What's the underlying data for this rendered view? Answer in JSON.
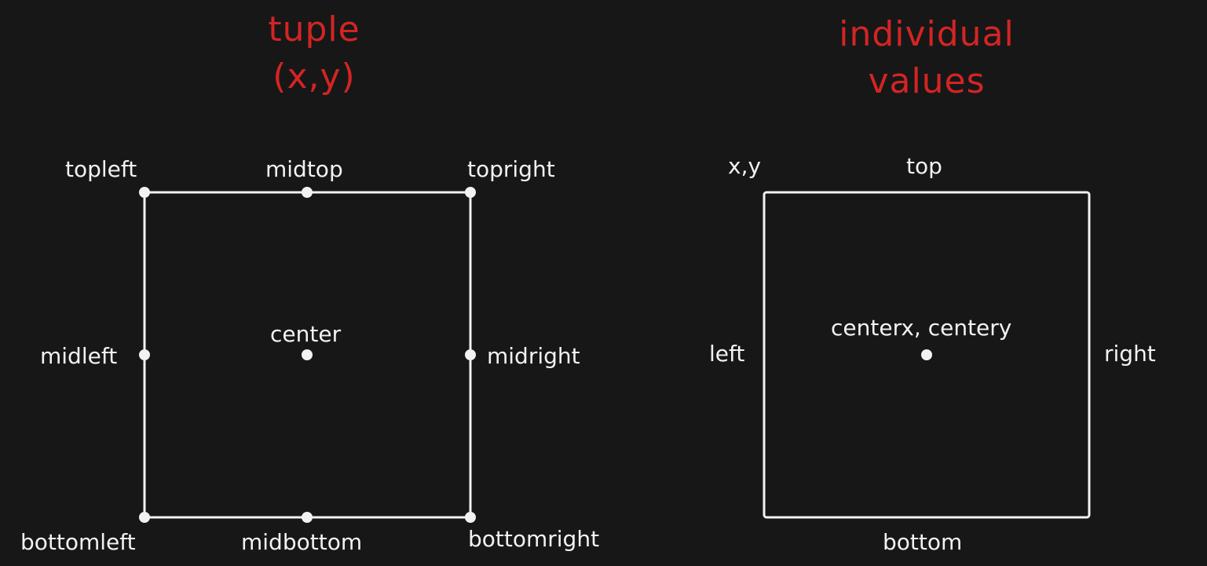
{
  "colors": {
    "background": "#171717",
    "heading": "#d42424",
    "stroke": "#f2f2f2"
  },
  "tuple_diagram": {
    "heading_line1": "tuple",
    "heading_line2": "(x,y)",
    "labels": {
      "topleft": "topleft",
      "midtop": "midtop",
      "topright": "topright",
      "midleft": "midleft",
      "center": "center",
      "midright": "midright",
      "bottomleft": "bottomleft",
      "midbottom": "midbottom",
      "bottomright": "bottomright"
    }
  },
  "individual_diagram": {
    "heading_line1": "individual",
    "heading_line2": "values",
    "labels": {
      "xy": "x,y",
      "top": "top",
      "left": "left",
      "center": "centerx, centery",
      "right": "right",
      "bottom": "bottom"
    }
  }
}
